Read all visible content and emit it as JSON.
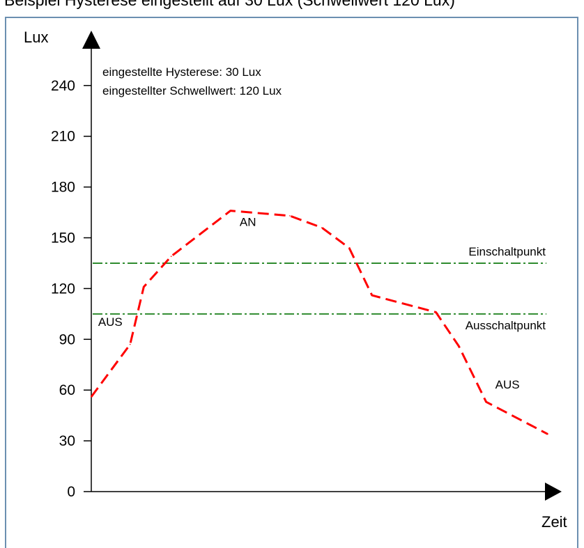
{
  "header_fragment": "Beispiel Hysterese eingestellt auf 30 Lux (Schwellwert 120 Lux)",
  "colors": {
    "frame": "#6b8fb0",
    "axis": "#000000",
    "measured_curve": "#ff0000",
    "threshold_lines": "#2e8b2e"
  },
  "chart_data": {
    "type": "line",
    "title": "",
    "xlabel": "Zeit",
    "ylabel": "Lux",
    "ylim": [
      0,
      250
    ],
    "yticks": [
      0,
      30,
      60,
      90,
      120,
      150,
      180,
      210,
      240
    ],
    "xlim": [
      0,
      100
    ],
    "grid": false,
    "info": [
      "eingestellte Hysterese: 30 Lux",
      "eingestellter Schwellwert: 120 Lux"
    ],
    "series": [
      {
        "style": "dashed",
        "color": "#ff0000",
        "x": [
          0,
          8.5,
          11.5,
          17.5,
          30.5,
          43.5,
          50.5,
          56.5,
          61.5,
          75.5,
          80.5,
          86.5,
          100
        ],
        "y": [
          56,
          87,
          121,
          139,
          166,
          163,
          156,
          144,
          116,
          106,
          86,
          53,
          34
        ]
      }
    ],
    "reference_lines": [
      {
        "value": 135,
        "label": "Einschaltpunkt",
        "style": "dash-dot",
        "color": "#2e8b2e"
      },
      {
        "value": 105,
        "label": "Ausschaltpunkt",
        "style": "dash-dot",
        "color": "#2e8b2e"
      }
    ],
    "annotations": [
      {
        "text": "AUS",
        "x": 1.5,
        "y": 98
      },
      {
        "text": "AN",
        "x": 32.5,
        "y": 157
      },
      {
        "text": "AUS",
        "x": 88.5,
        "y": 61
      }
    ]
  }
}
